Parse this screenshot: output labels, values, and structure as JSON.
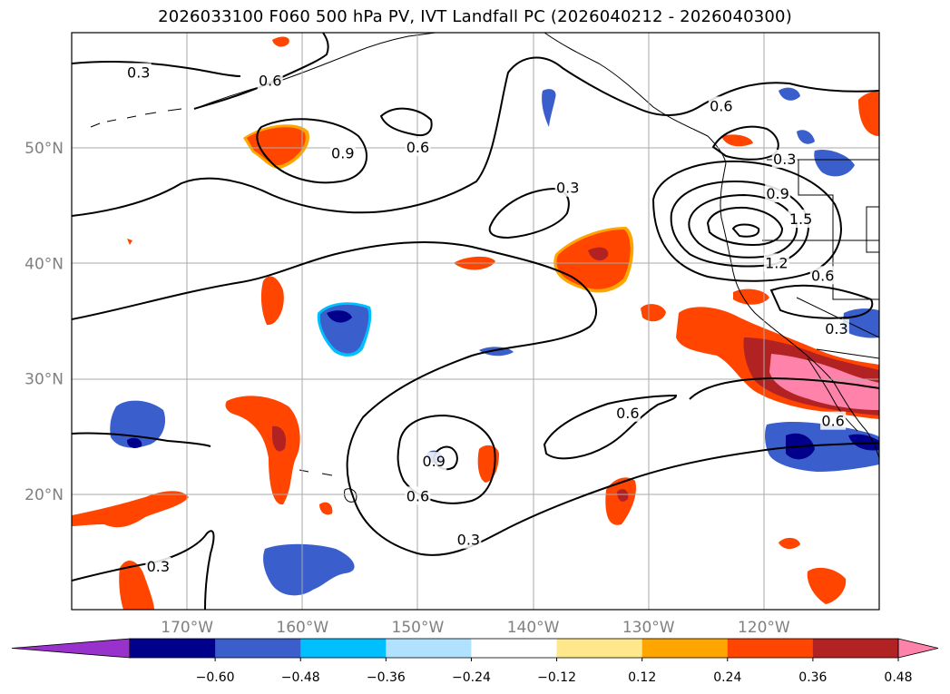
{
  "chart_data": {
    "type": "map-contour",
    "title": "2026033100 F060 500 hPa PV, IVT Landfall PC (2026040212 - 2026040300)",
    "lon_range": [
      -180,
      -110
    ],
    "lat_range": [
      10,
      60
    ],
    "lon_ticks": [
      -170,
      -160,
      -150,
      -140,
      -130,
      -120
    ],
    "lon_tick_labels": [
      "170°W",
      "160°W",
      "150°W",
      "140°W",
      "130°W",
      "120°W"
    ],
    "lat_ticks": [
      20,
      30,
      40,
      50
    ],
    "lat_tick_labels": [
      "20°N",
      "30°N",
      "40°N",
      "50°N"
    ],
    "grid": true,
    "colorbar": {
      "levels": [
        -0.6,
        -0.48,
        -0.36,
        -0.24,
        -0.12,
        0.12,
        0.24,
        0.36,
        0.48,
        0.6
      ],
      "tick_labels": [
        "−0.60",
        "−0.48",
        "−0.36",
        "−0.24",
        "−0.12",
        "0.12",
        "0.24",
        "0.36",
        "0.48",
        "0.60"
      ],
      "colors": [
        "#9932CC",
        "#00008B",
        "#3A5FCD",
        "#00BFFF",
        "#B0E2FF",
        "#FFFFFF",
        "#FFE88C",
        "#FFA500",
        "#FF4500",
        "#B22222",
        "#FF82AB"
      ],
      "extend": "both",
      "placement": "bottom"
    },
    "contour_labels": [
      {
        "text": "0.3",
        "lon": -174.2,
        "lat": 56.5
      },
      {
        "text": "0.6",
        "lon": -162.8,
        "lat": 55.8
      },
      {
        "text": "0.9",
        "lon": -156.5,
        "lat": 49.5
      },
      {
        "text": "0.6",
        "lon": -150.0,
        "lat": 50.0
      },
      {
        "text": "0.3",
        "lon": -137.0,
        "lat": 46.5
      },
      {
        "text": "0.6",
        "lon": -123.7,
        "lat": 53.6
      },
      {
        "text": "0.3",
        "lon": -118.2,
        "lat": 49.0
      },
      {
        "text": "0.9",
        "lon": -118.8,
        "lat": 46.0
      },
      {
        "text": "1.5",
        "lon": -116.8,
        "lat": 43.8
      },
      {
        "text": "1.2",
        "lon": -118.9,
        "lat": 40.0
      },
      {
        "text": "0.6",
        "lon": -114.9,
        "lat": 38.9
      },
      {
        "text": "0.3",
        "lon": -113.7,
        "lat": 34.3
      },
      {
        "text": "0.6",
        "lon": -114.0,
        "lat": 26.3
      },
      {
        "text": "0.6",
        "lon": -131.8,
        "lat": 27.0
      },
      {
        "text": "0.9",
        "lon": -148.6,
        "lat": 22.8
      },
      {
        "text": "0.6",
        "lon": -150.0,
        "lat": 19.8
      },
      {
        "text": "0.3",
        "lon": -145.6,
        "lat": 16.0
      },
      {
        "text": "0.3",
        "lon": -172.5,
        "lat": 13.7
      }
    ]
  }
}
